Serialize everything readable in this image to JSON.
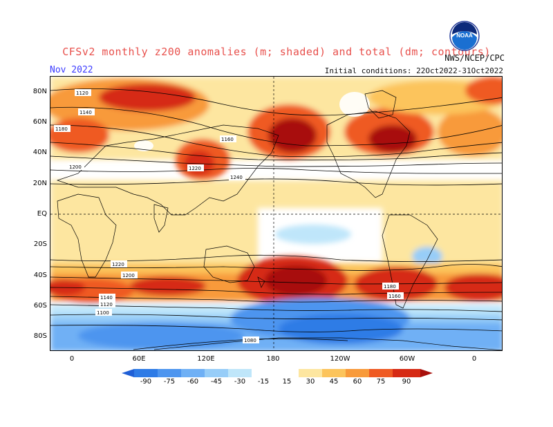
{
  "header": {
    "title": "CFSv2 monthly z200 anomalies (m; shaded) and total (dm; contours)",
    "month": "Nov 2022",
    "initial_conditions": "Initial conditions: 22Oct2022-31Oct2022",
    "agency": "NWS/NCEP/CPC",
    "logo_text": "NOAA"
  },
  "map": {
    "lat_labels": [
      "80N",
      "60N",
      "40N",
      "20N",
      "EQ",
      "20S",
      "40S",
      "60S",
      "80S"
    ],
    "lon_labels": [
      "0",
      "60E",
      "120E",
      "180",
      "120W",
      "60W",
      "0"
    ],
    "contour_labels": [
      "1120",
      "1140",
      "1160",
      "1180",
      "1200",
      "1220",
      "1240",
      "1220",
      "1200",
      "1180",
      "1160",
      "1140",
      "1120",
      "1100",
      "1080"
    ]
  },
  "colorbar": {
    "labels": [
      "-90",
      "-75",
      "-60",
      "-45",
      "-30",
      "-15",
      "15",
      "30",
      "45",
      "60",
      "75",
      "90"
    ],
    "colors": [
      "#1f5fd6",
      "#2e7be6",
      "#4d95ef",
      "#6fb0f5",
      "#97cdf8",
      "#bfe6fa",
      "#ffffff",
      "#fde6a0",
      "#fcc45c",
      "#f89a3a",
      "#ef5a22",
      "#d62a14",
      "#a8100c"
    ]
  }
}
